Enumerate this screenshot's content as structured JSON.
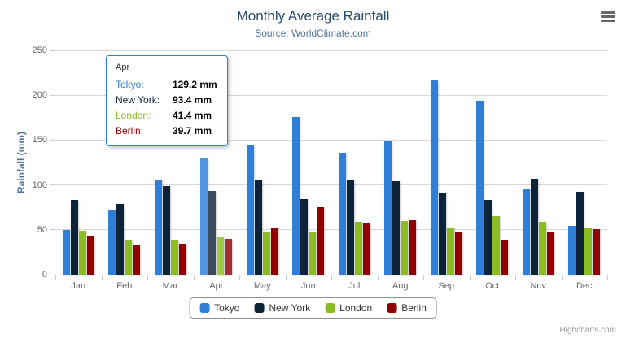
{
  "title": "Monthly Average Rainfall",
  "subtitle": "Source: WorldClimate.com",
  "credit": "Highcharts.com",
  "chart_data": {
    "type": "bar",
    "orientation": "vertical-columns",
    "title": "Monthly Average Rainfall",
    "subtitle": "Source: WorldClimate.com",
    "categories": [
      "Jan",
      "Feb",
      "Mar",
      "Apr",
      "May",
      "Jun",
      "Jul",
      "Aug",
      "Sep",
      "Oct",
      "Nov",
      "Dec"
    ],
    "series": [
      {
        "name": "Tokyo",
        "color": "#2f7ed8",
        "values": [
          49.9,
          71.5,
          106.4,
          129.2,
          144.0,
          176.0,
          135.6,
          148.5,
          216.4,
          194.1,
          95.6,
          54.4
        ]
      },
      {
        "name": "New York",
        "color": "#0d233a",
        "values": [
          83.6,
          78.8,
          98.5,
          93.4,
          106.0,
          84.5,
          105.0,
          104.3,
          91.2,
          83.5,
          106.6,
          92.3
        ]
      },
      {
        "name": "London",
        "color": "#8bbc21",
        "values": [
          48.9,
          38.8,
          39.3,
          41.4,
          47.0,
          48.3,
          59.0,
          59.6,
          52.4,
          65.2,
          59.3,
          51.2
        ]
      },
      {
        "name": "Berlin",
        "color": "#910000",
        "values": [
          42.4,
          33.2,
          34.5,
          39.7,
          52.6,
          75.5,
          57.4,
          60.4,
          47.6,
          39.1,
          46.8,
          51.1
        ]
      }
    ],
    "xlabel": "",
    "ylabel": "Rainfall (mm)",
    "ylim": [
      0,
      250
    ],
    "yticks": [
      0,
      50,
      100,
      150,
      200,
      250
    ],
    "grid": true,
    "legend_position": "bottom-center"
  },
  "tooltip": {
    "header": "Apr",
    "border_color": "#2f7ed8",
    "rows": [
      {
        "label": "Tokyo:",
        "value": "129.2 mm",
        "color": "#2f7ed8"
      },
      {
        "label": "New York:",
        "value": "93.4 mm",
        "color": "#0d233a"
      },
      {
        "label": "London:",
        "value": "41.4 mm",
        "color": "#8bbc21"
      },
      {
        "label": "Berlin:",
        "value": "39.7 mm",
        "color": "#910000"
      }
    ]
  },
  "colors": {
    "title": "#274b6d",
    "subtitle": "#4d759e",
    "axis_label": "#666666",
    "axis_line": "#c0d0e0",
    "gridline": "#d8d8d8"
  }
}
